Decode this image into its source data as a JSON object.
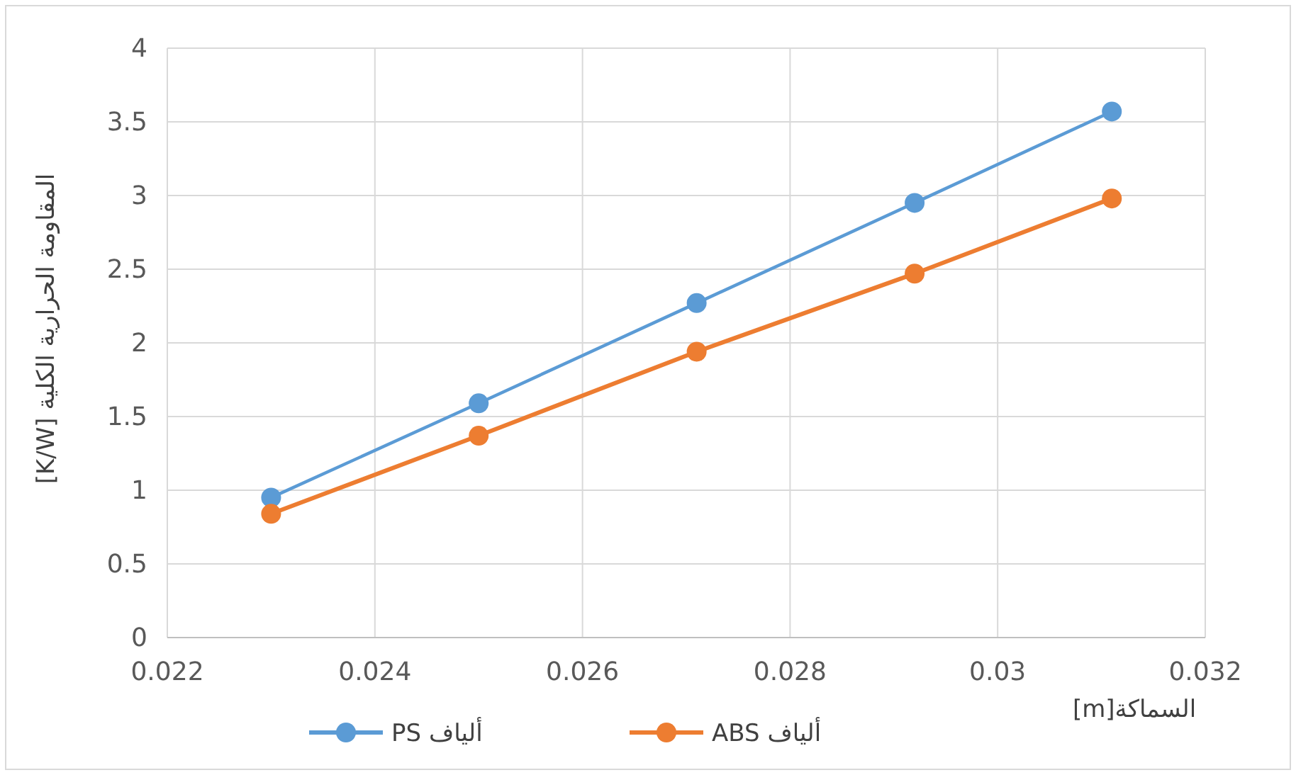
{
  "chart_data": {
    "type": "line",
    "xlabel": "السماكة[m]",
    "ylabel": "المقاومة الحرارية الكلية [K/W]",
    "x": [
      0.023,
      0.025,
      0.0271,
      0.0292,
      0.0311
    ],
    "series": [
      {
        "name": "ألياف PS",
        "color": "#5b9bd5",
        "values": [
          0.95,
          1.59,
          2.27,
          2.95,
          3.57
        ]
      },
      {
        "name": "ألياف ABS",
        "color": "#ed7d31",
        "values": [
          0.84,
          1.37,
          1.94,
          2.47,
          2.98
        ]
      }
    ],
    "xlim": [
      0.022,
      0.032
    ],
    "xticks": [
      0.022,
      0.024,
      0.026,
      0.028,
      0.03,
      0.032
    ],
    "ylim": [
      0,
      4
    ],
    "yticks": [
      0,
      0.5,
      1,
      1.5,
      2,
      2.5,
      3,
      3.5,
      4
    ],
    "grid": true,
    "legend": "bottom",
    "marker": "circle",
    "line_style": "solid"
  }
}
